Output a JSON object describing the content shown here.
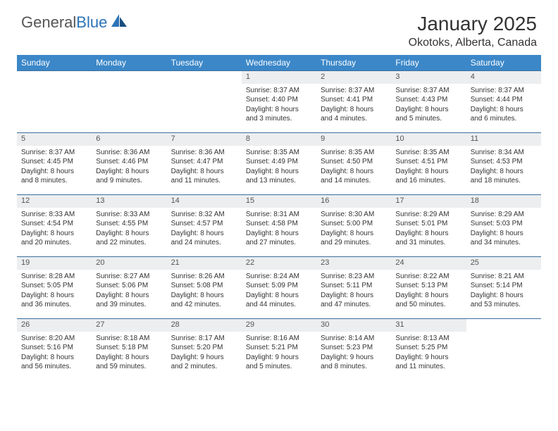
{
  "logo": {
    "text1": "General",
    "text2": "Blue"
  },
  "title": "January 2025",
  "location": "Okotoks, Alberta, Canada",
  "colors": {
    "header_bg": "#3b87c8",
    "header_text": "#ffffff",
    "daynum_bg": "#eceeef",
    "border": "#3b6fa0",
    "logo_gray": "#555555",
    "logo_blue": "#2b73b8"
  },
  "weekdays": [
    "Sunday",
    "Monday",
    "Tuesday",
    "Wednesday",
    "Thursday",
    "Friday",
    "Saturday"
  ],
  "weeks": [
    {
      "nums": [
        "",
        "",
        "",
        "1",
        "2",
        "3",
        "4"
      ],
      "cells": [
        null,
        null,
        null,
        {
          "sunrise": "Sunrise: 8:37 AM",
          "sunset": "Sunset: 4:40 PM",
          "day1": "Daylight: 8 hours",
          "day2": "and 3 minutes."
        },
        {
          "sunrise": "Sunrise: 8:37 AM",
          "sunset": "Sunset: 4:41 PM",
          "day1": "Daylight: 8 hours",
          "day2": "and 4 minutes."
        },
        {
          "sunrise": "Sunrise: 8:37 AM",
          "sunset": "Sunset: 4:43 PM",
          "day1": "Daylight: 8 hours",
          "day2": "and 5 minutes."
        },
        {
          "sunrise": "Sunrise: 8:37 AM",
          "sunset": "Sunset: 4:44 PM",
          "day1": "Daylight: 8 hours",
          "day2": "and 6 minutes."
        }
      ]
    },
    {
      "nums": [
        "5",
        "6",
        "7",
        "8",
        "9",
        "10",
        "11"
      ],
      "cells": [
        {
          "sunrise": "Sunrise: 8:37 AM",
          "sunset": "Sunset: 4:45 PM",
          "day1": "Daylight: 8 hours",
          "day2": "and 8 minutes."
        },
        {
          "sunrise": "Sunrise: 8:36 AM",
          "sunset": "Sunset: 4:46 PM",
          "day1": "Daylight: 8 hours",
          "day2": "and 9 minutes."
        },
        {
          "sunrise": "Sunrise: 8:36 AM",
          "sunset": "Sunset: 4:47 PM",
          "day1": "Daylight: 8 hours",
          "day2": "and 11 minutes."
        },
        {
          "sunrise": "Sunrise: 8:35 AM",
          "sunset": "Sunset: 4:49 PM",
          "day1": "Daylight: 8 hours",
          "day2": "and 13 minutes."
        },
        {
          "sunrise": "Sunrise: 8:35 AM",
          "sunset": "Sunset: 4:50 PM",
          "day1": "Daylight: 8 hours",
          "day2": "and 14 minutes."
        },
        {
          "sunrise": "Sunrise: 8:35 AM",
          "sunset": "Sunset: 4:51 PM",
          "day1": "Daylight: 8 hours",
          "day2": "and 16 minutes."
        },
        {
          "sunrise": "Sunrise: 8:34 AM",
          "sunset": "Sunset: 4:53 PM",
          "day1": "Daylight: 8 hours",
          "day2": "and 18 minutes."
        }
      ]
    },
    {
      "nums": [
        "12",
        "13",
        "14",
        "15",
        "16",
        "17",
        "18"
      ],
      "cells": [
        {
          "sunrise": "Sunrise: 8:33 AM",
          "sunset": "Sunset: 4:54 PM",
          "day1": "Daylight: 8 hours",
          "day2": "and 20 minutes."
        },
        {
          "sunrise": "Sunrise: 8:33 AM",
          "sunset": "Sunset: 4:55 PM",
          "day1": "Daylight: 8 hours",
          "day2": "and 22 minutes."
        },
        {
          "sunrise": "Sunrise: 8:32 AM",
          "sunset": "Sunset: 4:57 PM",
          "day1": "Daylight: 8 hours",
          "day2": "and 24 minutes."
        },
        {
          "sunrise": "Sunrise: 8:31 AM",
          "sunset": "Sunset: 4:58 PM",
          "day1": "Daylight: 8 hours",
          "day2": "and 27 minutes."
        },
        {
          "sunrise": "Sunrise: 8:30 AM",
          "sunset": "Sunset: 5:00 PM",
          "day1": "Daylight: 8 hours",
          "day2": "and 29 minutes."
        },
        {
          "sunrise": "Sunrise: 8:29 AM",
          "sunset": "Sunset: 5:01 PM",
          "day1": "Daylight: 8 hours",
          "day2": "and 31 minutes."
        },
        {
          "sunrise": "Sunrise: 8:29 AM",
          "sunset": "Sunset: 5:03 PM",
          "day1": "Daylight: 8 hours",
          "day2": "and 34 minutes."
        }
      ]
    },
    {
      "nums": [
        "19",
        "20",
        "21",
        "22",
        "23",
        "24",
        "25"
      ],
      "cells": [
        {
          "sunrise": "Sunrise: 8:28 AM",
          "sunset": "Sunset: 5:05 PM",
          "day1": "Daylight: 8 hours",
          "day2": "and 36 minutes."
        },
        {
          "sunrise": "Sunrise: 8:27 AM",
          "sunset": "Sunset: 5:06 PM",
          "day1": "Daylight: 8 hours",
          "day2": "and 39 minutes."
        },
        {
          "sunrise": "Sunrise: 8:26 AM",
          "sunset": "Sunset: 5:08 PM",
          "day1": "Daylight: 8 hours",
          "day2": "and 42 minutes."
        },
        {
          "sunrise": "Sunrise: 8:24 AM",
          "sunset": "Sunset: 5:09 PM",
          "day1": "Daylight: 8 hours",
          "day2": "and 44 minutes."
        },
        {
          "sunrise": "Sunrise: 8:23 AM",
          "sunset": "Sunset: 5:11 PM",
          "day1": "Daylight: 8 hours",
          "day2": "and 47 minutes."
        },
        {
          "sunrise": "Sunrise: 8:22 AM",
          "sunset": "Sunset: 5:13 PM",
          "day1": "Daylight: 8 hours",
          "day2": "and 50 minutes."
        },
        {
          "sunrise": "Sunrise: 8:21 AM",
          "sunset": "Sunset: 5:14 PM",
          "day1": "Daylight: 8 hours",
          "day2": "and 53 minutes."
        }
      ]
    },
    {
      "nums": [
        "26",
        "27",
        "28",
        "29",
        "30",
        "31",
        ""
      ],
      "cells": [
        {
          "sunrise": "Sunrise: 8:20 AM",
          "sunset": "Sunset: 5:16 PM",
          "day1": "Daylight: 8 hours",
          "day2": "and 56 minutes."
        },
        {
          "sunrise": "Sunrise: 8:18 AM",
          "sunset": "Sunset: 5:18 PM",
          "day1": "Daylight: 8 hours",
          "day2": "and 59 minutes."
        },
        {
          "sunrise": "Sunrise: 8:17 AM",
          "sunset": "Sunset: 5:20 PM",
          "day1": "Daylight: 9 hours",
          "day2": "and 2 minutes."
        },
        {
          "sunrise": "Sunrise: 8:16 AM",
          "sunset": "Sunset: 5:21 PM",
          "day1": "Daylight: 9 hours",
          "day2": "and 5 minutes."
        },
        {
          "sunrise": "Sunrise: 8:14 AM",
          "sunset": "Sunset: 5:23 PM",
          "day1": "Daylight: 9 hours",
          "day2": "and 8 minutes."
        },
        {
          "sunrise": "Sunrise: 8:13 AM",
          "sunset": "Sunset: 5:25 PM",
          "day1": "Daylight: 9 hours",
          "day2": "and 11 minutes."
        },
        null
      ]
    }
  ]
}
